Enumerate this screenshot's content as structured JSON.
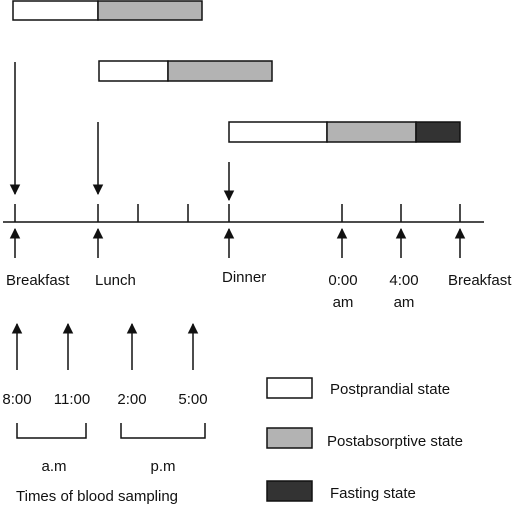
{
  "meals": {
    "breakfast": "Breakfast",
    "lunch": "Lunch",
    "dinner": "Dinner",
    "midnight_time": "0:00",
    "midnight_period": "am",
    "early_time": "4:00",
    "early_period": "am",
    "breakfast_next": "Breakfast"
  },
  "sampling": {
    "times": [
      "8:00",
      "11:00",
      "2:00",
      "5:00"
    ],
    "am_label": "a.m",
    "pm_label": "p.m",
    "caption": "Times of blood sampling"
  },
  "legend": {
    "postprandial": "Postprandial state",
    "postabsorptive": "Postabsorptive state",
    "fasting": "Fasting state"
  },
  "colors": {
    "postprandial": "#ffffff",
    "postabsorptive": "#b3b3b3",
    "fasting": "#333333"
  }
}
